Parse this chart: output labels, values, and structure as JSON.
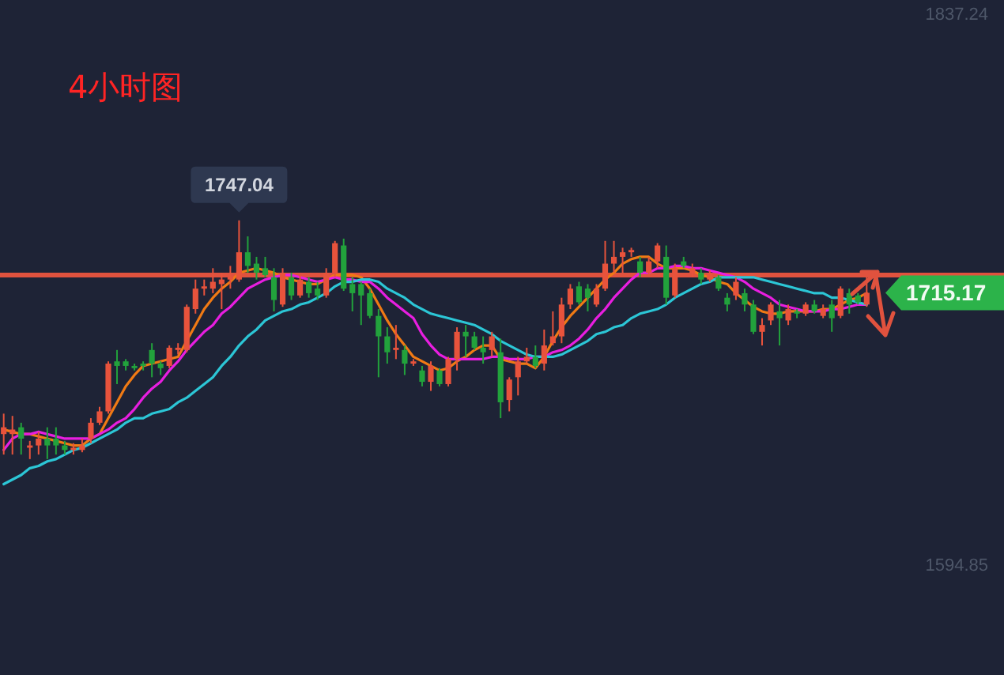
{
  "chart_data": {
    "type": "candlestick",
    "title": "4小时图",
    "categories": [
      null,
      null,
      null,
      null,
      null,
      null,
      null,
      null,
      null,
      null,
      null,
      null,
      null,
      null,
      null,
      null,
      null,
      null,
      null,
      null,
      null,
      null,
      null,
      null,
      null,
      null,
      null,
      null,
      null,
      null,
      null,
      null,
      null,
      null,
      null,
      null,
      null,
      null,
      null,
      null,
      null,
      null,
      null,
      null,
      null,
      null,
      null,
      null,
      null,
      null,
      null,
      null,
      null,
      null,
      null,
      null,
      null,
      null,
      null,
      null,
      null,
      null,
      null,
      null,
      null,
      null,
      null,
      null,
      null,
      null,
      null,
      null,
      null,
      null,
      null,
      null,
      null,
      null,
      null,
      null,
      null,
      null,
      null,
      null,
      null,
      null,
      null,
      null,
      null,
      null,
      null,
      null,
      null,
      null,
      null,
      null,
      null,
      null,
      null,
      null
    ],
    "ohlc": [
      [
        1653,
        1662,
        1644,
        1656
      ],
      [
        1653,
        1661,
        1644,
        1655
      ],
      [
        1656,
        1658,
        1644,
        1651
      ],
      [
        1647,
        1650,
        1642,
        1648
      ],
      [
        1648,
        1654,
        1644,
        1651
      ],
      [
        1651,
        1656,
        1642,
        1648
      ],
      [
        1651,
        1656,
        1644,
        1648
      ],
      [
        1648,
        1650,
        1644,
        1646
      ],
      [
        1646,
        1649,
        1644,
        1647
      ],
      [
        1646,
        1651,
        1645,
        1648
      ],
      [
        1651,
        1660,
        1649,
        1658
      ],
      [
        1658,
        1665,
        1657,
        1663
      ],
      [
        1663,
        1685,
        1662,
        1684
      ],
      [
        1685,
        1690,
        1675,
        1683
      ],
      [
        1685,
        1686,
        1681,
        1683
      ],
      [
        1683,
        1684,
        1681,
        1682
      ],
      [
        1684,
        1685,
        1681,
        1683
      ],
      [
        1690,
        1693,
        1678,
        1684
      ],
      [
        1684,
        1685,
        1679,
        1682
      ],
      [
        1683,
        1692,
        1682,
        1691
      ],
      [
        1690,
        1693,
        1688,
        1691
      ],
      [
        1690,
        1710,
        1689,
        1709
      ],
      [
        1708,
        1721,
        1706,
        1717
      ],
      [
        1717,
        1721,
        1714,
        1718
      ],
      [
        1717,
        1726,
        1715,
        1720
      ],
      [
        1719,
        1724,
        1708,
        1721
      ],
      [
        1721,
        1727,
        1717,
        1722
      ],
      [
        1721,
        1747.04,
        1720,
        1733
      ],
      [
        1733,
        1740,
        1724,
        1727
      ],
      [
        1728,
        1731,
        1721,
        1724
      ],
      [
        1726,
        1731,
        1722,
        1723
      ],
      [
        1722,
        1726,
        1707,
        1712
      ],
      [
        1710,
        1726,
        1709,
        1724
      ],
      [
        1722,
        1724,
        1712,
        1714
      ],
      [
        1714,
        1723,
        1713,
        1721
      ],
      [
        1720,
        1722,
        1713,
        1715
      ],
      [
        1717,
        1720,
        1712,
        1714
      ],
      [
        1714,
        1726,
        1713,
        1724
      ],
      [
        1724,
        1738,
        1722,
        1737
      ],
      [
        1736,
        1739,
        1716,
        1717
      ],
      [
        1719,
        1722,
        1707,
        1715
      ],
      [
        1719,
        1720,
        1701,
        1714
      ],
      [
        1715,
        1717,
        1704,
        1705
      ],
      [
        1705,
        1708,
        1678,
        1696
      ],
      [
        1696,
        1700,
        1684,
        1689
      ],
      [
        1690,
        1701,
        1686,
        1691
      ],
      [
        1690,
        1692,
        1679,
        1684
      ],
      [
        1684,
        1686,
        1683,
        1685
      ],
      [
        1681,
        1683,
        1674,
        1676
      ],
      [
        1676,
        1685,
        1672,
        1683
      ],
      [
        1681,
        1682,
        1674,
        1675
      ],
      [
        1675,
        1687,
        1674,
        1686
      ],
      [
        1686,
        1700,
        1681,
        1698
      ],
      [
        1698,
        1701,
        1687,
        1696
      ],
      [
        1696,
        1698,
        1690,
        1691
      ],
      [
        1691,
        1696,
        1684,
        1689
      ],
      [
        1690,
        1698,
        1687,
        1696
      ],
      [
        1689,
        1695,
        1660,
        1667
      ],
      [
        1668,
        1678,
        1663,
        1677
      ],
      [
        1678,
        1687,
        1670,
        1685
      ],
      [
        1685,
        1691,
        1684,
        1687
      ],
      [
        1687,
        1692,
        1682,
        1683
      ],
      [
        1684,
        1699,
        1681,
        1692
      ],
      [
        1693,
        1707,
        1692,
        1696
      ],
      [
        1696,
        1713,
        1693,
        1710
      ],
      [
        1710,
        1719,
        1708,
        1717
      ],
      [
        1718,
        1720,
        1710,
        1711
      ],
      [
        1717,
        1719,
        1707,
        1713
      ],
      [
        1710,
        1719,
        1709,
        1717
      ],
      [
        1717,
        1738,
        1716,
        1728
      ],
      [
        1728,
        1738,
        1724,
        1731
      ],
      [
        1731,
        1735,
        1724,
        1733
      ],
      [
        1733,
        1735,
        1731,
        1734
      ],
      [
        1729,
        1731,
        1722,
        1724
      ],
      [
        1724,
        1731,
        1723,
        1729
      ],
      [
        1729,
        1737,
        1726,
        1736
      ],
      [
        1731,
        1736,
        1710,
        1713
      ],
      [
        1714,
        1728,
        1713,
        1726
      ],
      [
        1729,
        1731,
        1726,
        1727
      ],
      [
        1724,
        1728,
        1722,
        1726
      ],
      [
        1724,
        1726,
        1719,
        1721
      ],
      [
        1721,
        1725,
        1720,
        1724
      ],
      [
        1722,
        1723,
        1716,
        1717
      ],
      [
        1713,
        1715,
        1707,
        1710
      ],
      [
        1714,
        1722,
        1712,
        1720
      ],
      [
        1715,
        1717,
        1707,
        1710
      ],
      [
        1710,
        1712,
        1697,
        1698
      ],
      [
        1698,
        1704,
        1692,
        1701
      ],
      [
        1703,
        1711,
        1701,
        1710
      ],
      [
        1707,
        1712,
        1692,
        1704
      ],
      [
        1703,
        1710,
        1701,
        1708
      ],
      [
        1707,
        1708,
        1704,
        1706
      ],
      [
        1706,
        1711,
        1705,
        1710
      ],
      [
        1710,
        1712,
        1706,
        1707
      ],
      [
        1705,
        1710,
        1704,
        1708
      ],
      [
        1710,
        1712,
        1698,
        1704
      ],
      [
        1705,
        1718,
        1704,
        1717
      ],
      [
        1715,
        1717,
        1706,
        1710
      ],
      [
        1714,
        1715,
        1710,
        1711
      ],
      [
        1710,
        1722,
        1709,
        1715.17
      ]
    ],
    "colors": [
      "#e8533c",
      "#e8533c",
      "#22a23c",
      "#e8533c",
      "#e8533c",
      "#22a23c",
      "#22a23c",
      "#22a23c",
      "#e8533c",
      "#e8533c",
      "#e8533c",
      "#e8533c",
      "#e8533c",
      "#22a23c",
      "#22a23c",
      "#22a23c",
      "#22a23c",
      "#22a23c",
      "#22a23c",
      "#e8533c",
      "#e8533c",
      "#e8533c",
      "#e8533c",
      "#e8533c",
      "#e8533c",
      "#e8533c",
      "#e8533c",
      "#e8533c",
      "#22a23c",
      "#22a23c",
      "#22a23c",
      "#22a23c",
      "#e8533c",
      "#22a23c",
      "#e8533c",
      "#22a23c",
      "#22a23c",
      "#e8533c",
      "#e8533c",
      "#22a23c",
      "#22a23c",
      "#22a23c",
      "#22a23c",
      "#22a23c",
      "#22a23c",
      "#e8533c",
      "#22a23c",
      "#e8533c",
      "#22a23c",
      "#e8533c",
      "#22a23c",
      "#e8533c",
      "#e8533c",
      "#22a23c",
      "#22a23c",
      "#22a23c",
      "#e8533c",
      "#22a23c",
      "#e8533c",
      "#e8533c",
      "#e8533c",
      "#22a23c",
      "#e8533c",
      "#e8533c",
      "#e8533c",
      "#e8533c",
      "#22a23c",
      "#22a23c",
      "#e8533c",
      "#e8533c",
      "#e8533c",
      "#e8533c",
      "#e8533c",
      "#22a23c",
      "#e8533c",
      "#e8533c",
      "#22a23c",
      "#e8533c",
      "#22a23c",
      "#e8533c",
      "#22a23c",
      "#e8533c",
      "#22a23c",
      "#22a23c",
      "#e8533c",
      "#22a23c",
      "#22a23c",
      "#e8533c",
      "#e8533c",
      "#22a23c",
      "#e8533c",
      "#22a23c",
      "#e8533c",
      "#22a23c",
      "#e8533c",
      "#22a23c",
      "#e8533c",
      "#22a23c",
      "#22a23c",
      "#e8533c"
    ],
    "series": [
      {
        "type": "line",
        "color": "#f07a14",
        "values": [
          1655,
          1654,
          1653,
          1653,
          1652,
          1651,
          1650,
          1649,
          1648,
          1648,
          1651,
          1653,
          1660,
          1667,
          1674,
          1679,
          1683,
          1684,
          1685,
          1686,
          1687,
          1694,
          1701,
          1708,
          1713,
          1717,
          1720,
          1724,
          1725,
          1726,
          1725,
          1724,
          1722,
          1721,
          1720,
          1719,
          1719,
          1721,
          1723,
          1723,
          1723,
          1722,
          1717,
          1710,
          1703,
          1697,
          1692,
          1687,
          1685,
          1683,
          1681,
          1682,
          1685,
          1687,
          1690,
          1692,
          1692,
          1686,
          1685,
          1684,
          1684,
          1682,
          1687,
          1694,
          1700,
          1705,
          1709,
          1713,
          1717,
          1721,
          1724,
          1728,
          1730,
          1731,
          1731,
          1728,
          1726,
          1726,
          1726,
          1725,
          1723,
          1722,
          1720,
          1719,
          1715,
          1712,
          1709,
          1707,
          1706,
          1706,
          1707,
          1707,
          1707,
          1707,
          1708,
          1708,
          1710,
          1712,
          1713,
          1715
        ]
      },
      {
        "type": "line",
        "color": "#e81ee0",
        "values": [
          1646,
          1651,
          1653,
          1653,
          1654,
          1653,
          1652,
          1651,
          1651,
          1651,
          1651,
          1653,
          1655,
          1658,
          1660,
          1664,
          1669,
          1673,
          1676,
          1681,
          1685,
          1690,
          1694,
          1698,
          1701,
          1706,
          1709,
          1713,
          1717,
          1719,
          1721,
          1722,
          1723,
          1723,
          1722,
          1721,
          1720,
          1721,
          1722,
          1721,
          1721,
          1720,
          1720,
          1717,
          1713,
          1710,
          1707,
          1704,
          1697,
          1692,
          1688,
          1686,
          1686,
          1686,
          1686,
          1686,
          1687,
          1687,
          1686,
          1686,
          1686,
          1687,
          1687,
          1689,
          1690,
          1692,
          1695,
          1699,
          1704,
          1708,
          1713,
          1717,
          1721,
          1724,
          1724,
          1726,
          1726,
          1727,
          1727,
          1726,
          1726,
          1725,
          1724,
          1723,
          1722,
          1720,
          1717,
          1715,
          1713,
          1710,
          1709,
          1708,
          1707,
          1707,
          1707,
          1708,
          1708,
          1709,
          1710,
          1710
        ]
      },
      {
        "type": "line",
        "color": "#2cc6d6",
        "values": [
          1631,
          1633,
          1635,
          1638,
          1639,
          1641,
          1642,
          1644,
          1646,
          1647,
          1649,
          1651,
          1653,
          1655,
          1658,
          1660,
          1660,
          1662,
          1663,
          1664,
          1667,
          1669,
          1672,
          1675,
          1678,
          1683,
          1687,
          1692,
          1696,
          1699,
          1703,
          1705,
          1707,
          1708,
          1710,
          1711,
          1713,
          1715,
          1718,
          1720,
          1720,
          1721,
          1721,
          1720,
          1717,
          1715,
          1713,
          1710,
          1708,
          1706,
          1705,
          1704,
          1703,
          1702,
          1701,
          1699,
          1697,
          1694,
          1692,
          1690,
          1688,
          1687,
          1687,
          1687,
          1688,
          1690,
          1692,
          1694,
          1697,
          1698,
          1700,
          1701,
          1704,
          1706,
          1707,
          1708,
          1710,
          1713,
          1715,
          1717,
          1719,
          1720,
          1722,
          1722,
          1722,
          1722,
          1722,
          1721,
          1720,
          1719,
          1718,
          1717,
          1716,
          1715,
          1715,
          1713,
          1713,
          1712,
          1711,
          1710
        ]
      }
    ],
    "ylim": [
      1547,
      1844
    ],
    "yticks": [
      1594.85,
      1837.24
    ],
    "tick_labels": "y",
    "ref_lines": [
      {
        "axis": "y",
        "value": 1723,
        "color": "#e0523e"
      }
    ],
    "annotations": [
      {
        "text": "1747.04",
        "y": 1747.04
      },
      "1715.17"
    ]
  }
}
